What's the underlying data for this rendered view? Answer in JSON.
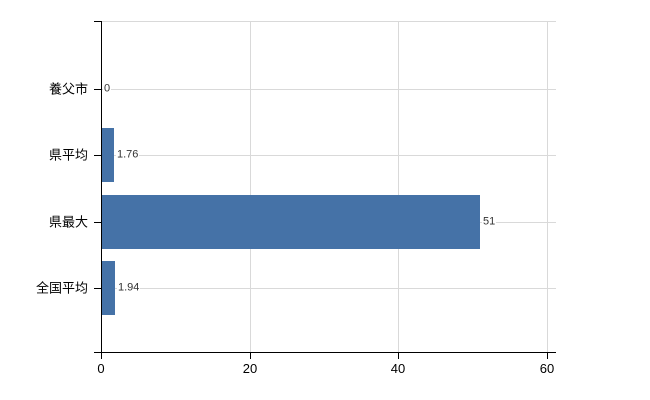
{
  "chart_data": {
    "type": "bar",
    "orientation": "horizontal",
    "title": "",
    "xlabel": "",
    "ylabel": "",
    "categories": [
      "養父市",
      "県平均",
      "県最大",
      "全国平均"
    ],
    "values": [
      0,
      1.76,
      51,
      1.94
    ],
    "value_labels": [
      "0",
      "1.76",
      "51",
      "1.94"
    ],
    "xlim": [
      0,
      60
    ],
    "x_ticks": [
      0,
      20,
      40,
      60
    ],
    "x_tick_labels": [
      "0",
      "20",
      "40",
      "60"
    ],
    "grid": true,
    "legend": false,
    "gridlines": {
      "vertical_at": [
        20,
        40,
        60
      ],
      "horizontal_at_categories": true,
      "top_border": true
    },
    "colors": {
      "bar": "#4572a7",
      "grid": "#d9d9d9",
      "axis": "#000000",
      "value_label": "#333333",
      "tick_label": "#000000",
      "background": "#ffffff"
    }
  }
}
